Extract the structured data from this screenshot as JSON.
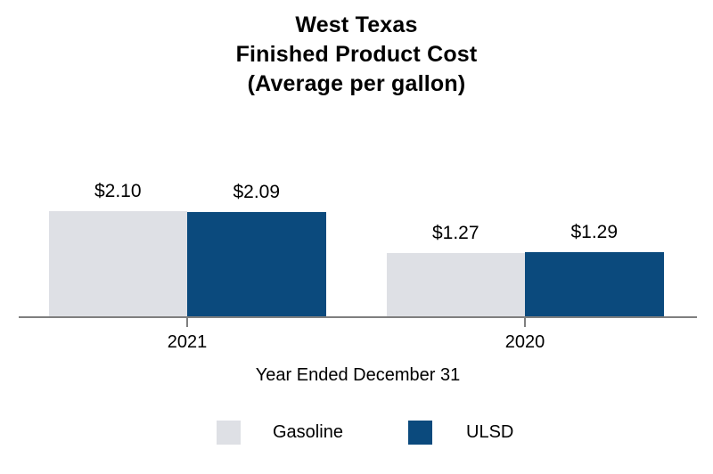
{
  "chart_data": {
    "type": "bar",
    "title_lines": [
      "West Texas",
      "Finished Product Cost",
      "(Average per gallon)"
    ],
    "categories": [
      "2021",
      "2020"
    ],
    "series": [
      {
        "name": "Gasoline",
        "color": "#dee0e5",
        "values": [
          2.1,
          1.27
        ],
        "labels": [
          "$2.10",
          "$1.27"
        ]
      },
      {
        "name": "ULSD",
        "color": "#0b4a7d",
        "values": [
          2.09,
          1.29
        ],
        "labels": [
          "$2.09",
          "$1.29"
        ]
      }
    ],
    "xlabel": "Year Ended December 31",
    "ylabel": "",
    "ylim": [
      0,
      2.5
    ],
    "grid": false,
    "legend_position": "bottom-center",
    "axis_color": "#7f7f7f",
    "text_color": "#000000",
    "background": "#ffffff"
  }
}
